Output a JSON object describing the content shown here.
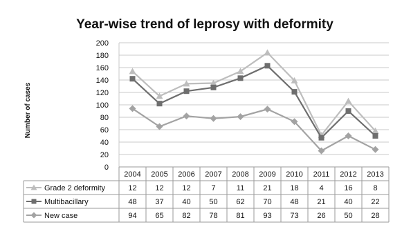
{
  "colors": {
    "grade2": "#bdbdbd",
    "multibacillary": "#6e6e6e",
    "newcase": "#a3a3a3",
    "grid": "#c8c8c8",
    "border": "#9a9a9a"
  },
  "chart_data": {
    "type": "line",
    "title": "Year-wise trend of leprosy with deformity",
    "ylabel": "Number of cases",
    "xlabel": "",
    "ylim": [
      0,
      200
    ],
    "yticks": [
      0,
      20,
      40,
      60,
      80,
      100,
      120,
      140,
      160,
      180,
      200
    ],
    "grid": true,
    "categories": [
      "2004",
      "2005",
      "2006",
      "2007",
      "2008",
      "2009",
      "2010",
      "2011",
      "2012",
      "2013"
    ],
    "series": [
      {
        "name": "Grade 2 deformity",
        "marker": "triangle",
        "color": "#bdbdbd",
        "table_values": [
          12,
          12,
          12,
          7,
          11,
          21,
          18,
          4,
          16,
          8
        ],
        "values": [
          154,
          114,
          134,
          135,
          154,
          184,
          139,
          51,
          106,
          58
        ]
      },
      {
        "name": "Multibacillary",
        "marker": "square",
        "color": "#6e6e6e",
        "table_values": [
          48,
          37,
          40,
          50,
          62,
          70,
          48,
          21,
          40,
          22
        ],
        "values": [
          142,
          102,
          122,
          128,
          143,
          163,
          121,
          47,
          90,
          50
        ]
      },
      {
        "name": "New case",
        "marker": "diamond",
        "color": "#a3a3a3",
        "table_values": [
          94,
          65,
          82,
          78,
          81,
          93,
          73,
          26,
          50,
          28
        ],
        "values": [
          94,
          65,
          82,
          78,
          81,
          93,
          73,
          26,
          50,
          28
        ]
      }
    ]
  }
}
